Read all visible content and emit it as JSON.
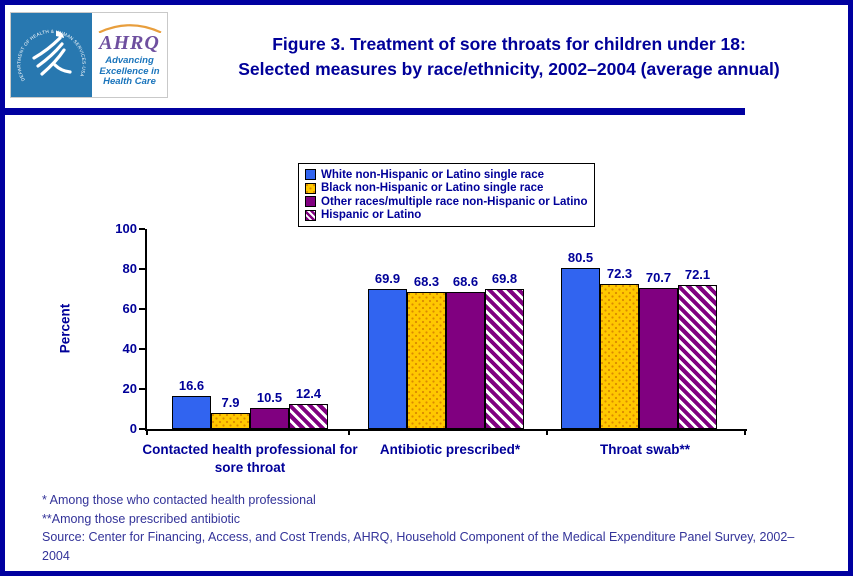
{
  "page": {
    "border_color": "#0000A0",
    "background": "#FFFFFF"
  },
  "header": {
    "title_line1": "Figure 3. Treatment of sore throats for children under 18:",
    "title_line2": "Selected measures by race/ethnicity, 2002–2004 (average annual)",
    "title_color": "#000099",
    "rule_color": "#0000A0"
  },
  "logo": {
    "seal_text": "DEPARTMENT OF HEALTH & HUMAN SERVICES·USA",
    "acronym": "AHRQ",
    "tagline_line1": "Advancing",
    "tagline_line2": "Excellence in",
    "tagline_line3": "Health Care",
    "hhs_blue": "#2878B0",
    "ahrq_purple": "#6E4F9F",
    "tagline_blue": "#1B75BC",
    "arc_orange": "#E89E3C"
  },
  "chart_data": {
    "type": "bar",
    "title": "",
    "xlabel": "",
    "ylabel": "Percent",
    "ylim": [
      0,
      100
    ],
    "yticks": [
      0,
      20,
      40,
      60,
      80,
      100
    ],
    "grid": false,
    "legend_position": "top-center",
    "axis_color": "#000000",
    "label_color": "#000099",
    "categories": [
      "Contacted health professional for sore throat",
      "Antibiotic prescribed*",
      "Throat swab**"
    ],
    "series": [
      {
        "name": "White non-Hispanic or Latino single race",
        "fill": "solid",
        "color": "#3164F0",
        "values": [
          16.6,
          69.9,
          80.5
        ]
      },
      {
        "name": "Black non-Hispanic or Latino single race",
        "fill": "dotted",
        "color": "#FFC800",
        "dot_color": "#DB8A00",
        "values": [
          7.9,
          68.3,
          72.3
        ]
      },
      {
        "name": "Other races/multiple race non-Hispanic or Latino",
        "fill": "solid",
        "color": "#800080",
        "values": [
          10.5,
          68.6,
          70.7
        ]
      },
      {
        "name": "Hispanic or Latino",
        "fill": "hatched",
        "color": "#800080",
        "hatch_bg": "#FFFFFF",
        "values": [
          12.4,
          69.8,
          72.1
        ]
      }
    ]
  },
  "footnotes": {
    "note1": "* Among those who contacted health professional",
    "note2": "**Among those prescribed antibiotic",
    "source": "Source: Center for Financing, Access, and Cost Trends, AHRQ, Household Component of the Medical Expenditure Panel Survey, 2002–2004"
  }
}
